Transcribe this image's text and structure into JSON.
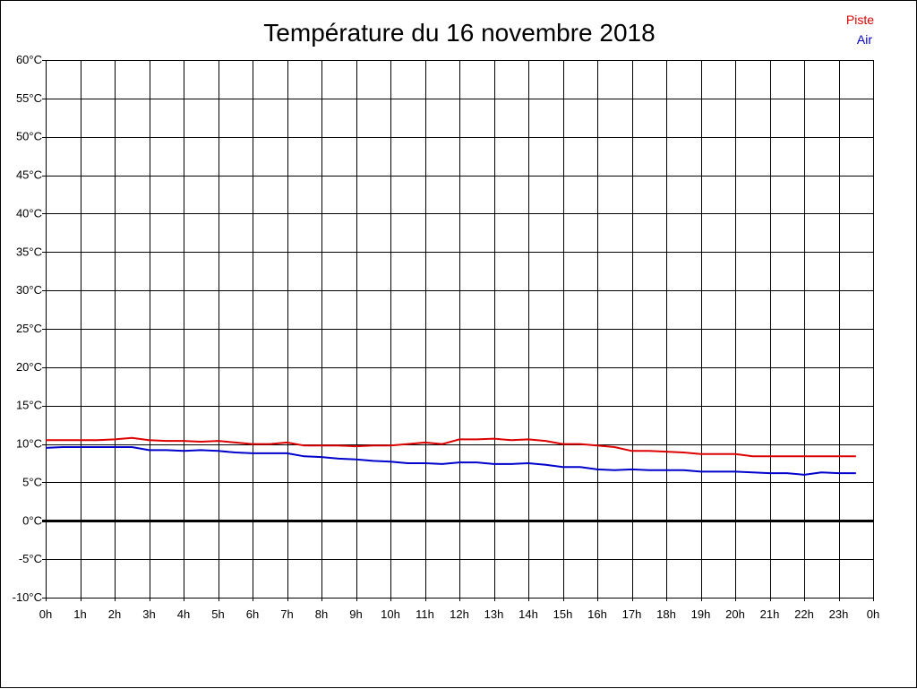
{
  "chart_data": {
    "type": "line",
    "title": "Température du 16 novembre 2018",
    "xlabel": "",
    "ylabel": "",
    "x_tick_labels": [
      "0h",
      "1h",
      "2h",
      "3h",
      "4h",
      "5h",
      "6h",
      "7h",
      "8h",
      "9h",
      "10h",
      "11h",
      "12h",
      "13h",
      "14h",
      "15h",
      "16h",
      "17h",
      "18h",
      "19h",
      "20h",
      "21h",
      "22h",
      "23h",
      "0h"
    ],
    "y_ticks": [
      -10,
      -5,
      0,
      5,
      10,
      15,
      20,
      25,
      30,
      35,
      40,
      45,
      50,
      55,
      60
    ],
    "y_unit": "°C",
    "xlim": [
      0,
      24
    ],
    "ylim": [
      -10,
      60
    ],
    "grid": true,
    "zero_line": true,
    "legend_position": "top-right",
    "series": [
      {
        "name": "Piste",
        "color": "#dd0000",
        "x": [
          0,
          0.5,
          1,
          1.5,
          2,
          2.5,
          3,
          3.5,
          4,
          4.5,
          5,
          5.5,
          6,
          6.5,
          7,
          7.5,
          8,
          8.5,
          9,
          9.5,
          10,
          10.5,
          11,
          11.5,
          12,
          12.5,
          13,
          13.5,
          14,
          14.5,
          15,
          15.5,
          16,
          16.5,
          17,
          17.5,
          18,
          18.5,
          19,
          19.5,
          20,
          20.5,
          21,
          21.5,
          22,
          22.5,
          23,
          23.5
        ],
        "values": [
          10.5,
          10.5,
          10.5,
          10.5,
          10.6,
          10.8,
          10.5,
          10.4,
          10.4,
          10.3,
          10.4,
          10.2,
          10.0,
          10.0,
          10.2,
          9.8,
          9.8,
          9.8,
          9.7,
          9.8,
          9.8,
          10.0,
          10.2,
          10.0,
          10.6,
          10.6,
          10.7,
          10.5,
          10.6,
          10.4,
          10.0,
          10.0,
          9.8,
          9.6,
          9.1,
          9.1,
          9.0,
          8.9,
          8.7,
          8.7,
          8.7,
          8.4,
          8.4,
          8.4,
          8.4,
          8.4,
          8.4,
          8.4
        ]
      },
      {
        "name": "Air",
        "color": "#0000cc",
        "x": [
          0,
          0.5,
          1,
          1.5,
          2,
          2.5,
          3,
          3.5,
          4,
          4.5,
          5,
          5.5,
          6,
          6.5,
          7,
          7.5,
          8,
          8.5,
          9,
          9.5,
          10,
          10.5,
          11,
          11.5,
          12,
          12.5,
          13,
          13.5,
          14,
          14.5,
          15,
          15.5,
          16,
          16.5,
          17,
          17.5,
          18,
          18.5,
          19,
          19.5,
          20,
          20.5,
          21,
          21.5,
          22,
          22.5,
          23,
          23.5
        ],
        "values": [
          9.5,
          9.6,
          9.6,
          9.6,
          9.6,
          9.6,
          9.2,
          9.2,
          9.1,
          9.2,
          9.1,
          8.9,
          8.8,
          8.8,
          8.8,
          8.4,
          8.3,
          8.1,
          8.0,
          7.8,
          7.7,
          7.5,
          7.5,
          7.4,
          7.6,
          7.6,
          7.4,
          7.4,
          7.5,
          7.3,
          7.0,
          7.0,
          6.7,
          6.6,
          6.7,
          6.6,
          6.6,
          6.6,
          6.4,
          6.4,
          6.4,
          6.3,
          6.2,
          6.2,
          6.0,
          6.3,
          6.2,
          6.2
        ]
      }
    ]
  }
}
